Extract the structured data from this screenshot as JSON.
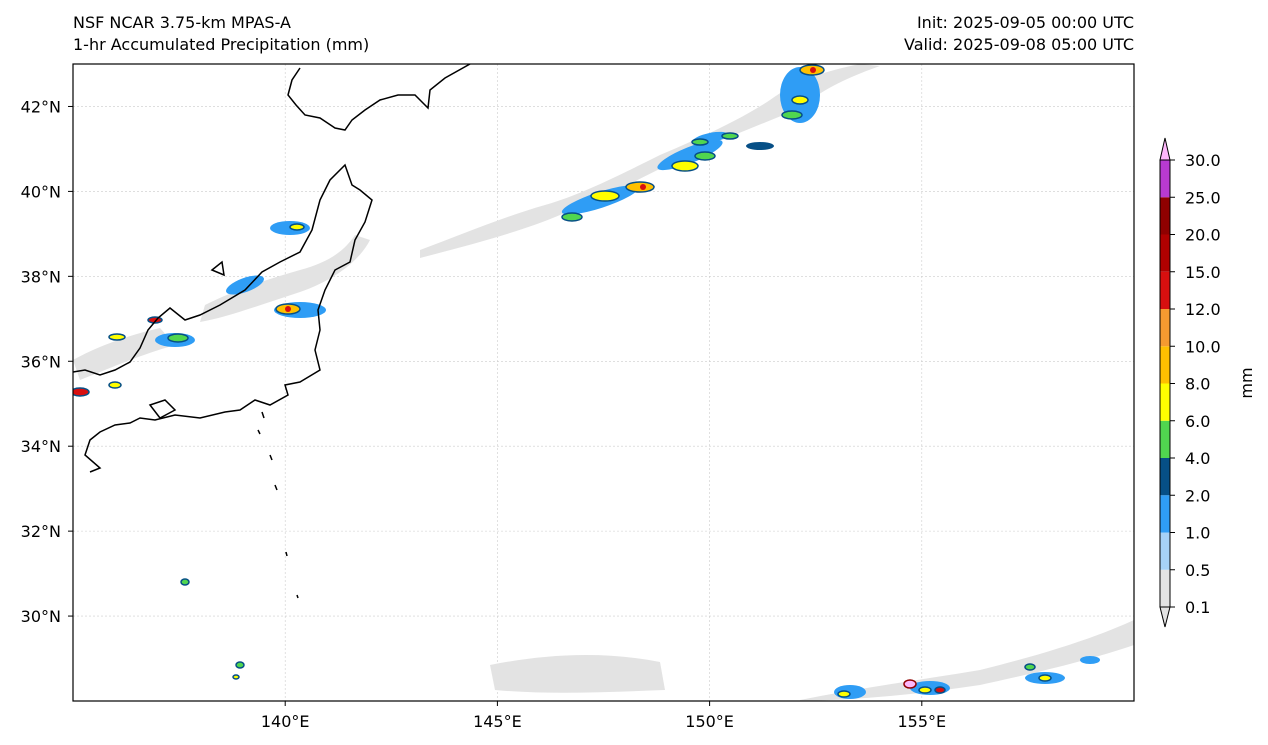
{
  "header": {
    "model": "NSF NCAR 3.75-km MPAS-A",
    "field": "1-hr Accumulated Precipitation (mm)",
    "init": "Init: 2025-09-05 00:00 UTC",
    "valid": "Valid: 2025-09-08 05:00 UTC"
  },
  "map": {
    "lon_range": [
      135,
      160
    ],
    "lat_range": [
      28,
      43
    ],
    "lon_ticks": [
      {
        "value": 140,
        "label": "140°E"
      },
      {
        "value": 145,
        "label": "145°E"
      },
      {
        "value": 150,
        "label": "150°E"
      },
      {
        "value": 155,
        "label": "155°E"
      }
    ],
    "lat_ticks": [
      {
        "value": 42,
        "label": "42°N"
      },
      {
        "value": 40,
        "label": "40°N"
      },
      {
        "value": 38,
        "label": "38°N"
      },
      {
        "value": 36,
        "label": "36°N"
      },
      {
        "value": 34,
        "label": "34°N"
      },
      {
        "value": 32,
        "label": "32°N"
      },
      {
        "value": 30,
        "label": "30°N"
      }
    ],
    "gridlines": true
  },
  "colorbar": {
    "unit": "mm",
    "bins": [
      {
        "lower": "0.1",
        "color": "#e3e3e3"
      },
      {
        "lower": "0.5",
        "color": "#a6d2f7"
      },
      {
        "lower": "1.0",
        "color": "#2f9df5"
      },
      {
        "lower": "2.0",
        "color": "#064f86"
      },
      {
        "lower": "4.0",
        "color": "#50d64f"
      },
      {
        "lower": "6.0",
        "color": "#ffff00"
      },
      {
        "lower": "8.0",
        "color": "#ffc000"
      },
      {
        "lower": "10.0",
        "color": "#f59a30"
      },
      {
        "lower": "12.0",
        "color": "#d80f0f"
      },
      {
        "lower": "15.0",
        "color": "#b00000"
      },
      {
        "lower": "20.0",
        "color": "#8f0000"
      },
      {
        "lower": "25.0",
        "color": "#b83ad0"
      },
      {
        "lower": "30.0",
        "color": "#fdb7fb"
      }
    ]
  }
}
